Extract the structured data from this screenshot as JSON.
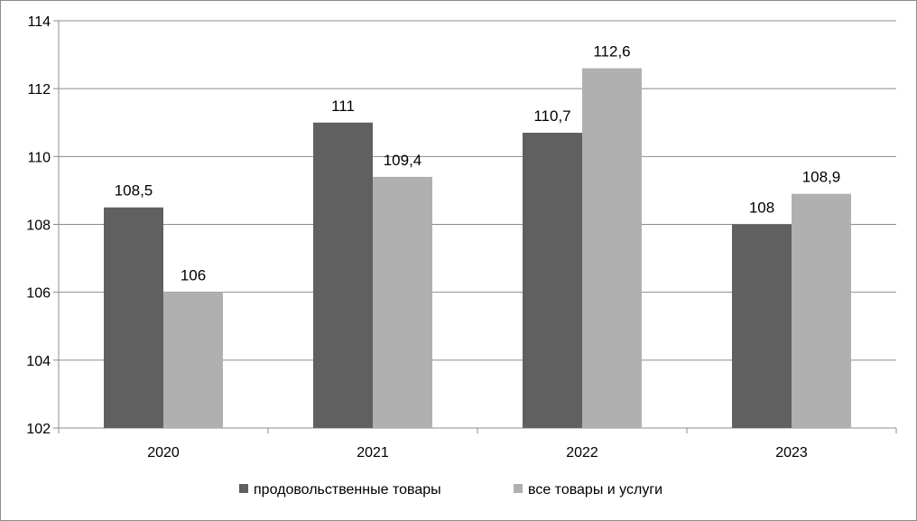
{
  "chart_data": {
    "type": "bar",
    "categories": [
      "2020",
      "2021",
      "2022",
      "2023"
    ],
    "series": [
      {
        "name": "продовольственные товары",
        "values": [
          108.5,
          111,
          110.7,
          108
        ],
        "labels": [
          "108,5",
          "111",
          "110,7",
          "108"
        ],
        "color": "#606060"
      },
      {
        "name": "все товары и услуги",
        "values": [
          106,
          109.4,
          112.6,
          108.9
        ],
        "labels": [
          "106",
          "109,4",
          "112,6",
          "108,9"
        ],
        "color": "#b0b0b0"
      }
    ],
    "ylim": [
      102,
      114
    ],
    "yticks": [
      "102",
      "104",
      "106",
      "108",
      "110",
      "112",
      "114"
    ],
    "grid": true,
    "legend_position": "bottom"
  }
}
